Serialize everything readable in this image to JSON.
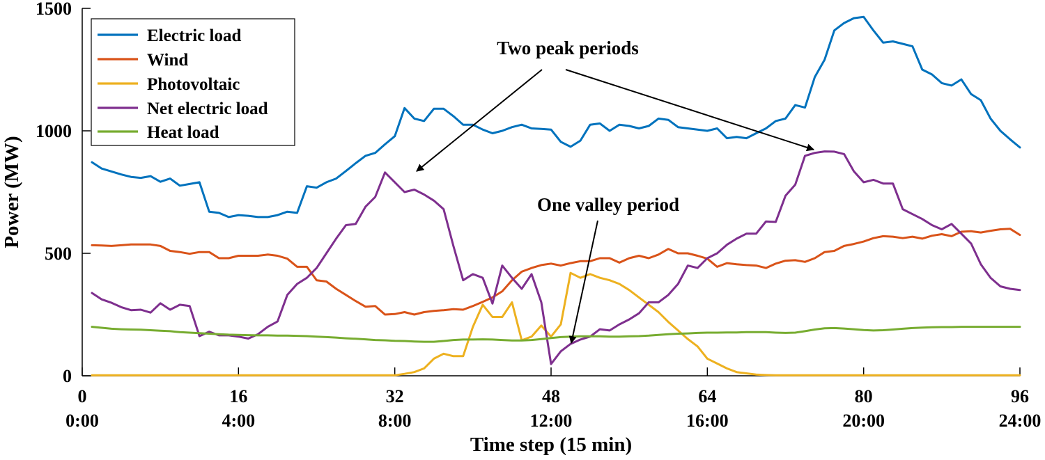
{
  "chart_data": {
    "type": "line",
    "xlabel": "Time step (15 min)",
    "ylabel": "Power (MW)",
    "xlim": [
      0,
      96
    ],
    "ylim": [
      0,
      1500
    ],
    "xticks": [
      0,
      16,
      32,
      48,
      64,
      80,
      96
    ],
    "xtick_time_labels": [
      "0:00",
      "4:00",
      "8:00",
      "12:00",
      "16:00",
      "20:00",
      "24:00"
    ],
    "yticks": [
      0,
      500,
      1000,
      1500
    ],
    "legend_position": "top-left",
    "x": [
      1,
      2,
      3,
      4,
      5,
      6,
      7,
      8,
      9,
      10,
      11,
      12,
      13,
      14,
      15,
      16,
      17,
      18,
      19,
      20,
      21,
      22,
      23,
      24,
      25,
      26,
      27,
      28,
      29,
      30,
      31,
      32,
      33,
      34,
      35,
      36,
      37,
      38,
      39,
      40,
      41,
      42,
      43,
      44,
      45,
      46,
      47,
      48,
      49,
      50,
      51,
      52,
      53,
      54,
      55,
      56,
      57,
      58,
      59,
      60,
      61,
      62,
      63,
      64,
      65,
      66,
      67,
      68,
      69,
      70,
      71,
      72,
      73,
      74,
      75,
      76,
      77,
      78,
      79,
      80,
      81,
      82,
      83,
      84,
      85,
      86,
      87,
      88,
      89,
      90,
      91,
      92,
      93,
      94,
      95,
      96
    ],
    "series": [
      {
        "name": "Electric load",
        "color": "#0072BD",
        "values": [
          872,
          846,
          834,
          822,
          812,
          808,
          815,
          792,
          805,
          776,
          783,
          790,
          670,
          665,
          648,
          656,
          653,
          648,
          648,
          656,
          670,
          665,
          774,
          768,
          790,
          805,
          836,
          868,
          898,
          910,
          945,
          978,
          1093,
          1050,
          1040,
          1090,
          1090,
          1060,
          1025,
          1025,
          1005,
          990,
          1000,
          1015,
          1025,
          1010,
          1008,
          1005,
          955,
          935,
          960,
          1025,
          1030,
          1000,
          1025,
          1020,
          1010,
          1020,
          1050,
          1045,
          1015,
          1010,
          1005,
          1000,
          1010,
          970,
          975,
          970,
          990,
          1010,
          1040,
          1050,
          1105,
          1095,
          1220,
          1290,
          1410,
          1440,
          1460,
          1465,
          1410,
          1360,
          1365,
          1355,
          1345,
          1250,
          1230,
          1195,
          1185,
          1210,
          1150,
          1125,
          1050,
          1000,
          965,
          932
        ]
      },
      {
        "name": "Wind",
        "color": "#D95319",
        "values": [
          533,
          532,
          530,
          533,
          536,
          536,
          536,
          530,
          510,
          505,
          498,
          505,
          505,
          480,
          480,
          490,
          490,
          490,
          495,
          490,
          478,
          445,
          445,
          390,
          385,
          355,
          330,
          305,
          282,
          285,
          250,
          252,
          260,
          250,
          260,
          265,
          268,
          272,
          270,
          285,
          302,
          320,
          345,
          390,
          425,
          440,
          452,
          458,
          450,
          460,
          468,
          468,
          480,
          480,
          462,
          480,
          490,
          480,
          495,
          518,
          500,
          500,
          490,
          478,
          445,
          460,
          455,
          452,
          450,
          440,
          458,
          470,
          472,
          465,
          480,
          505,
          510,
          530,
          538,
          548,
          562,
          570,
          568,
          562,
          568,
          560,
          572,
          578,
          570,
          588,
          590,
          585,
          592,
          598,
          600,
          575
        ]
      },
      {
        "name": "Photovoltaic",
        "color": "#EDB120",
        "values": [
          2,
          2,
          2,
          2,
          2,
          2,
          2,
          2,
          2,
          2,
          2,
          2,
          2,
          2,
          2,
          2,
          2,
          2,
          2,
          2,
          2,
          2,
          2,
          2,
          2,
          2,
          2,
          2,
          2,
          2,
          2,
          2,
          8,
          15,
          30,
          70,
          90,
          80,
          80,
          200,
          290,
          240,
          240,
          300,
          145,
          160,
          205,
          160,
          210,
          420,
          400,
          415,
          400,
          390,
          375,
          350,
          320,
          290,
          260,
          220,
          185,
          150,
          120,
          70,
          50,
          30,
          15,
          10,
          5,
          3,
          2,
          2,
          2,
          2,
          2,
          2,
          2,
          2,
          2,
          2,
          2,
          2,
          2,
          2,
          2,
          2,
          2,
          2,
          2,
          2,
          2,
          2,
          2,
          2,
          2,
          2
        ]
      },
      {
        "name": "Net electric load",
        "color": "#7E2F8E",
        "values": [
          338,
          312,
          298,
          280,
          268,
          270,
          258,
          296,
          270,
          290,
          285,
          162,
          180,
          165,
          165,
          160,
          152,
          170,
          200,
          222,
          330,
          375,
          400,
          440,
          500,
          560,
          615,
          620,
          690,
          730,
          830,
          790,
          750,
          760,
          740,
          715,
          680,
          530,
          390,
          415,
          400,
          295,
          450,
          400,
          355,
          415,
          300,
          48,
          100,
          130,
          148,
          160,
          190,
          185,
          210,
          230,
          255,
          300,
          300,
          330,
          375,
          450,
          440,
          480,
          500,
          535,
          560,
          580,
          580,
          630,
          628,
          735,
          780,
          898,
          910,
          916,
          915,
          905,
          835,
          790,
          800,
          785,
          785,
          680,
          660,
          640,
          615,
          598,
          620,
          580,
          540,
          455,
          400,
          365,
          355,
          350
        ]
      },
      {
        "name": "Heat load",
        "color": "#77AC30",
        "values": [
          200,
          196,
          192,
          190,
          189,
          188,
          186,
          184,
          182,
          178,
          176,
          174,
          172,
          170,
          168,
          167,
          166,
          165,
          165,
          164,
          164,
          163,
          162,
          160,
          158,
          156,
          153,
          151,
          149,
          146,
          145,
          143,
          142,
          140,
          139,
          139,
          142,
          146,
          148,
          148,
          149,
          148,
          146,
          144,
          144,
          146,
          150,
          154,
          158,
          160,
          161,
          161,
          161,
          160,
          160,
          161,
          162,
          164,
          167,
          170,
          172,
          173,
          175,
          176,
          176,
          177,
          177,
          178,
          178,
          178,
          176,
          175,
          176,
          182,
          189,
          194,
          195,
          193,
          190,
          187,
          185,
          186,
          189,
          192,
          195,
          197,
          198,
          199,
          199,
          200,
          200,
          200,
          200,
          200,
          200,
          200
        ]
      }
    ],
    "annotations": [
      {
        "text": "Two peak periods",
        "arrow_targets": [
          [
            34,
            825
          ],
          [
            80,
            920
          ]
        ]
      },
      {
        "text": "One valley period",
        "arrow_targets": [
          [
            49.5,
            120
          ]
        ]
      }
    ]
  }
}
